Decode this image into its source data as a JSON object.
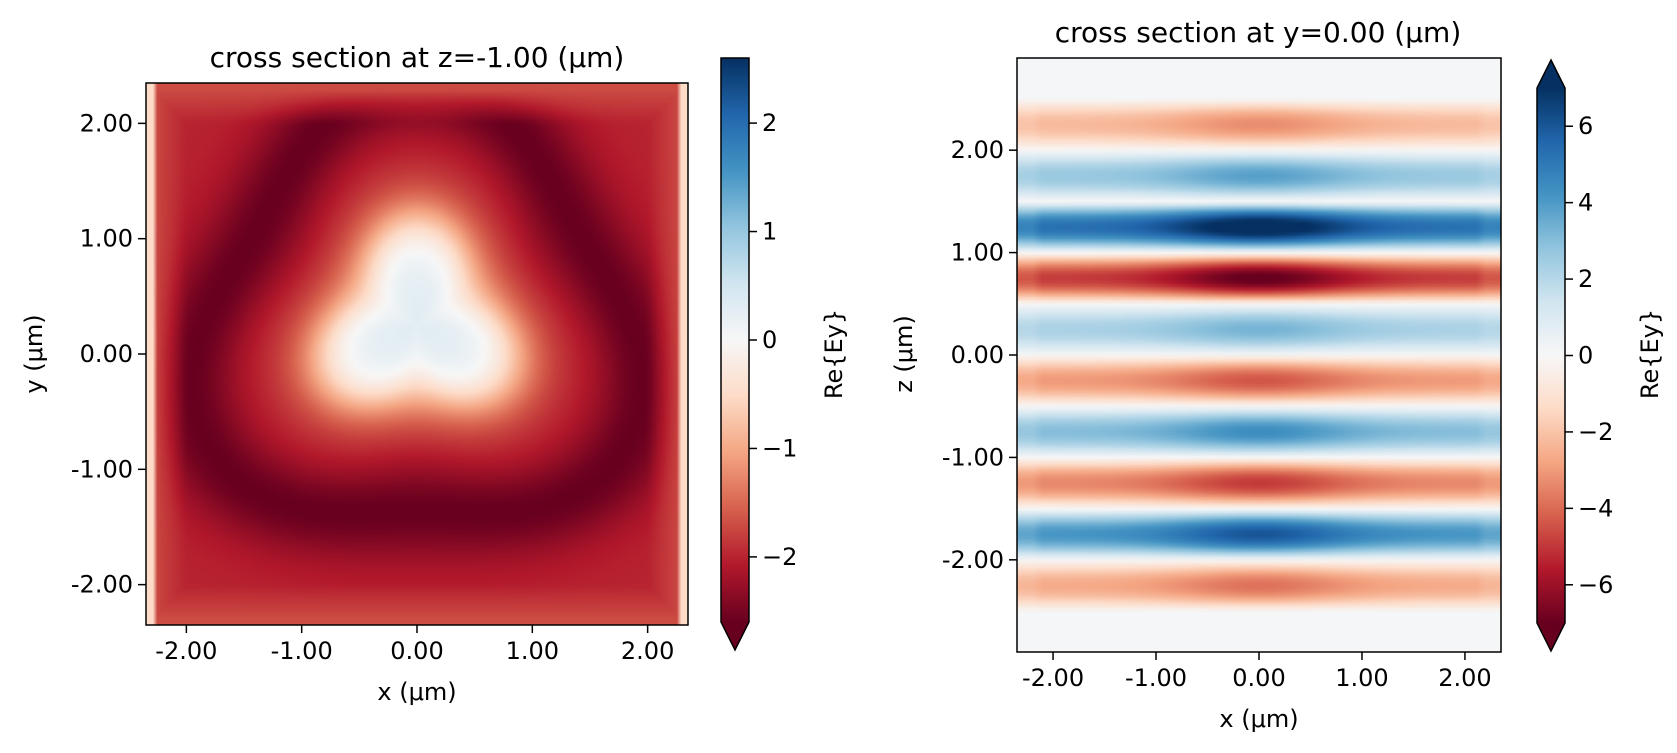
{
  "chart_data": [
    {
      "type": "heatmap",
      "title": "cross section at z=-1.00 (μm)",
      "xlabel": "x (μm)",
      "ylabel": "y (μm)",
      "xlim": [
        -2.35,
        2.35
      ],
      "ylim": [
        -2.35,
        2.35
      ],
      "xticks": [
        -2.0,
        -1.0,
        0.0,
        1.0,
        2.0
      ],
      "xtick_labels": [
        "-2.00",
        "-1.00",
        "0.00",
        "1.00",
        "2.00"
      ],
      "yticks": [
        -2.0,
        -1.0,
        0.0,
        1.0,
        2.0
      ],
      "ytick_labels": [
        "-2.00",
        "-1.00",
        "0.00",
        "1.00",
        "2.00"
      ],
      "colormap": "RdBu",
      "colorbar": {
        "label": "Re{Ey}",
        "range": [
          -2.6,
          2.6
        ],
        "extend": "min",
        "ticks": [
          -2,
          -1,
          0,
          1,
          2
        ],
        "tick_labels": [
          "−2",
          "−1",
          "0",
          "1",
          "2"
        ]
      },
      "field_description": {
        "background_value": -2.0,
        "central_lobe_value": 0.3,
        "central_lobe_shape": "rounded triangle centered near (0, 0.3)",
        "dark_ring_value": -2.6,
        "edge_value": -1.7
      }
    },
    {
      "type": "heatmap",
      "title": "cross section at y=0.00 (μm)",
      "xlabel": "x (μm)",
      "ylabel": "z (μm)",
      "xlim": [
        -2.35,
        2.35
      ],
      "ylim": [
        -2.9,
        2.9
      ],
      "xticks": [
        -2.0,
        -1.0,
        0.0,
        1.0,
        2.0
      ],
      "xtick_labels": [
        "-2.00",
        "-1.00",
        "0.00",
        "1.00",
        "2.00"
      ],
      "yticks": [
        -2.0,
        -1.0,
        0.0,
        1.0,
        2.0
      ],
      "ytick_labels": [
        "-2.00",
        "-1.00",
        "0.00",
        "1.00",
        "2.00"
      ],
      "colormap": "RdBu",
      "colorbar": {
        "label": "Re{Ey}",
        "range": [
          -7,
          7
        ],
        "extend": "both",
        "ticks": [
          -6,
          -4,
          -2,
          0,
          2,
          4,
          6
        ],
        "tick_labels": [
          "−6",
          "−4",
          "−2",
          "0",
          "2",
          "4",
          "6"
        ]
      },
      "field_description": {
        "stripe_orientation": "horizontal",
        "stripe_values_top_to_bottom": [
          -3,
          3.5,
          7,
          -6.5,
          3,
          -4,
          4,
          -4.5,
          5.5,
          -3.5
        ],
        "center_focus_x": 0.0
      }
    }
  ]
}
